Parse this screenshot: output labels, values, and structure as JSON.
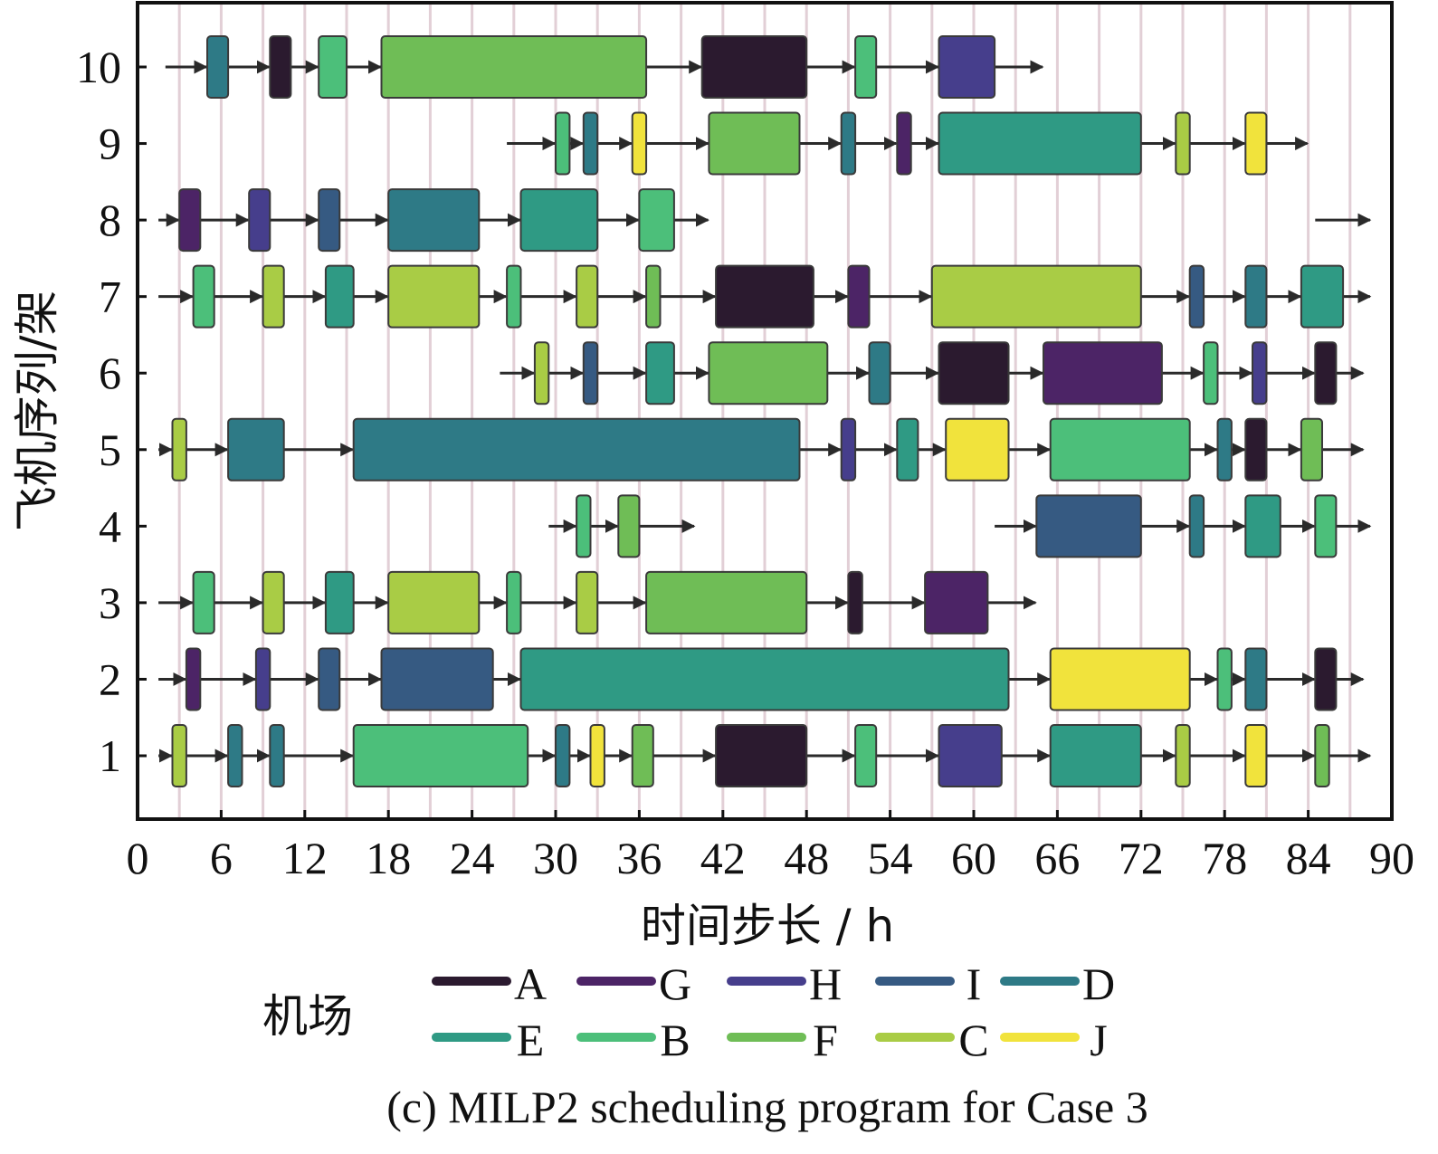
{
  "chart_data": {
    "type": "gantt",
    "caption": "(c) MILP2 scheduling program for Case 3",
    "xlabel": "时间步长 / h",
    "ylabel": "飞机序列/架",
    "xlim": [
      0,
      90
    ],
    "xticks": [
      0,
      6,
      12,
      18,
      24,
      30,
      36,
      42,
      48,
      54,
      60,
      66,
      72,
      78,
      84,
      90
    ],
    "yticks": [
      1,
      2,
      3,
      4,
      5,
      6,
      7,
      8,
      9,
      10
    ],
    "legend_title": "机场",
    "legend": [
      {
        "key": "A",
        "label": "A",
        "color": "#2b1a2f"
      },
      {
        "key": "G",
        "label": "G",
        "color": "#4c2466"
      },
      {
        "key": "H",
        "label": "H",
        "color": "#463e8c"
      },
      {
        "key": "I",
        "label": "I",
        "color": "#365a82"
      },
      {
        "key": "D",
        "label": "D",
        "color": "#2e7a86"
      },
      {
        "key": "E",
        "label": "E",
        "color": "#2f9a84"
      },
      {
        "key": "B",
        "label": "B",
        "color": "#4cbf7a"
      },
      {
        "key": "F",
        "label": "F",
        "color": "#6fbd56"
      },
      {
        "key": "C",
        "label": "C",
        "color": "#a9cc45"
      },
      {
        "key": "J",
        "label": "J",
        "color": "#f1e33c"
      }
    ],
    "rows": [
      {
        "aircraft": 10,
        "line": [
          2,
          65
        ],
        "tasks": [
          {
            "start": 5,
            "end": 6.5,
            "airport": "D"
          },
          {
            "start": 9.5,
            "end": 11,
            "airport": "A"
          },
          {
            "start": 13,
            "end": 15,
            "airport": "B"
          },
          {
            "start": 17.5,
            "end": 36.5,
            "airport": "F"
          },
          {
            "start": 40.5,
            "end": 48,
            "airport": "A"
          },
          {
            "start": 51.5,
            "end": 53,
            "airport": "B"
          },
          {
            "start": 57.5,
            "end": 61.5,
            "airport": "H"
          }
        ]
      },
      {
        "aircraft": 9,
        "line": [
          26.5,
          84
        ],
        "tasks": [
          {
            "start": 30,
            "end": 31,
            "airport": "B"
          },
          {
            "start": 32,
            "end": 33,
            "airport": "D"
          },
          {
            "start": 35.5,
            "end": 36.5,
            "airport": "J"
          },
          {
            "start": 41,
            "end": 47.5,
            "airport": "F"
          },
          {
            "start": 50.5,
            "end": 51.5,
            "airport": "D"
          },
          {
            "start": 54.5,
            "end": 55.5,
            "airport": "G"
          },
          {
            "start": 57.5,
            "end": 72,
            "airport": "E"
          },
          {
            "start": 74.5,
            "end": 75.5,
            "airport": "C"
          },
          {
            "start": 79.5,
            "end": 81,
            "airport": "J"
          }
        ]
      },
      {
        "aircraft": 8,
        "line": [
          1.5,
          41
        ],
        "tasks": [
          {
            "start": 3,
            "end": 4.5,
            "airport": "G"
          },
          {
            "start": 8,
            "end": 9.5,
            "airport": "H"
          },
          {
            "start": 13,
            "end": 14.5,
            "airport": "I"
          },
          {
            "start": 18,
            "end": 24.5,
            "airport": "D"
          },
          {
            "start": 27.5,
            "end": 33,
            "airport": "E"
          },
          {
            "start": 36,
            "end": 38.5,
            "airport": "B"
          }
        ]
      },
      {
        "aircraft": 7,
        "line": [
          1.5,
          88.5
        ],
        "tasks": [
          {
            "start": 4,
            "end": 5.5,
            "airport": "B"
          },
          {
            "start": 9,
            "end": 10.5,
            "airport": "C"
          },
          {
            "start": 13.5,
            "end": 15.5,
            "airport": "E"
          },
          {
            "start": 18,
            "end": 24.5,
            "airport": "C"
          },
          {
            "start": 26.5,
            "end": 27.5,
            "airport": "B"
          },
          {
            "start": 31.5,
            "end": 33,
            "airport": "C"
          },
          {
            "start": 36.5,
            "end": 37.5,
            "airport": "F"
          },
          {
            "start": 41.5,
            "end": 48.5,
            "airport": "A"
          },
          {
            "start": 51,
            "end": 52.5,
            "airport": "G"
          },
          {
            "start": 57,
            "end": 72,
            "airport": "C"
          },
          {
            "start": 75.5,
            "end": 76.5,
            "airport": "I"
          },
          {
            "start": 79.5,
            "end": 81,
            "airport": "D"
          },
          {
            "start": 83.5,
            "end": 86.5,
            "airport": "E"
          }
        ]
      },
      {
        "aircraft": 6,
        "line": [
          26,
          88
        ],
        "tasks": [
          {
            "start": 28.5,
            "end": 29.5,
            "airport": "C"
          },
          {
            "start": 32,
            "end": 33,
            "airport": "I"
          },
          {
            "start": 36.5,
            "end": 38.5,
            "airport": "E"
          },
          {
            "start": 41,
            "end": 49.5,
            "airport": "F"
          },
          {
            "start": 52.5,
            "end": 54,
            "airport": "D"
          },
          {
            "start": 57.5,
            "end": 62.5,
            "airport": "A"
          },
          {
            "start": 65,
            "end": 73.5,
            "airport": "G"
          },
          {
            "start": 76.5,
            "end": 77.5,
            "airport": "B"
          },
          {
            "start": 80,
            "end": 81,
            "airport": "H"
          },
          {
            "start": 84.5,
            "end": 86,
            "airport": "A"
          }
        ]
      },
      {
        "aircraft": 5,
        "line": [
          1.5,
          88
        ],
        "tasks": [
          {
            "start": 2.5,
            "end": 3.5,
            "airport": "C"
          },
          {
            "start": 6.5,
            "end": 10.5,
            "airport": "D"
          },
          {
            "start": 15.5,
            "end": 47.5,
            "airport": "D"
          },
          {
            "start": 50.5,
            "end": 51.5,
            "airport": "H"
          },
          {
            "start": 54.5,
            "end": 56,
            "airport": "E"
          },
          {
            "start": 58,
            "end": 62.5,
            "airport": "J"
          },
          {
            "start": 65.5,
            "end": 75.5,
            "airport": "B"
          },
          {
            "start": 77.5,
            "end": 78.5,
            "airport": "D"
          },
          {
            "start": 79.5,
            "end": 81,
            "airport": "A"
          },
          {
            "start": 83.5,
            "end": 85,
            "airport": "F"
          }
        ]
      },
      {
        "aircraft": 4,
        "line": [
          29.5,
          40
        ],
        "tasks": [
          {
            "start": 31.5,
            "end": 32.5,
            "airport": "B"
          },
          {
            "start": 34.5,
            "end": 36,
            "airport": "F"
          }
        ]
      },
      {
        "aircraft": 4,
        "line": [
          61.5,
          88.5
        ],
        "tasks": [
          {
            "start": 64.5,
            "end": 72,
            "airport": "I"
          },
          {
            "start": 75.5,
            "end": 76.5,
            "airport": "D"
          },
          {
            "start": 79.5,
            "end": 82,
            "airport": "E"
          },
          {
            "start": 84.5,
            "end": 86,
            "airport": "B"
          }
        ]
      },
      {
        "aircraft": 3,
        "line": [
          1.5,
          64.5
        ],
        "tasks": [
          {
            "start": 4,
            "end": 5.5,
            "airport": "B"
          },
          {
            "start": 9,
            "end": 10.5,
            "airport": "C"
          },
          {
            "start": 13.5,
            "end": 15.5,
            "airport": "E"
          },
          {
            "start": 18,
            "end": 24.5,
            "airport": "C"
          },
          {
            "start": 26.5,
            "end": 27.5,
            "airport": "B"
          },
          {
            "start": 31.5,
            "end": 33,
            "airport": "C"
          },
          {
            "start": 36.5,
            "end": 48,
            "airport": "F"
          },
          {
            "start": 51,
            "end": 52,
            "airport": "A"
          },
          {
            "start": 56.5,
            "end": 61,
            "airport": "G"
          }
        ]
      },
      {
        "aircraft": 2,
        "line": [
          1.5,
          88
        ],
        "tasks": [
          {
            "start": 3.5,
            "end": 4.5,
            "airport": "G"
          },
          {
            "start": 8.5,
            "end": 9.5,
            "airport": "H"
          },
          {
            "start": 13,
            "end": 14.5,
            "airport": "I"
          },
          {
            "start": 17.5,
            "end": 25.5,
            "airport": "I"
          },
          {
            "start": 27.5,
            "end": 62.5,
            "airport": "E"
          },
          {
            "start": 65.5,
            "end": 75.5,
            "airport": "J"
          },
          {
            "start": 77.5,
            "end": 78.5,
            "airport": "B"
          },
          {
            "start": 79.5,
            "end": 81,
            "airport": "D"
          },
          {
            "start": 84.5,
            "end": 86,
            "airport": "A"
          }
        ]
      },
      {
        "aircraft": 1,
        "line": [
          1.5,
          88.5
        ],
        "tasks": [
          {
            "start": 2.5,
            "end": 3.5,
            "airport": "C"
          },
          {
            "start": 6.5,
            "end": 7.5,
            "airport": "D"
          },
          {
            "start": 9.5,
            "end": 10.5,
            "airport": "D"
          },
          {
            "start": 15.5,
            "end": 28,
            "airport": "B"
          },
          {
            "start": 30,
            "end": 31,
            "airport": "D"
          },
          {
            "start": 32.5,
            "end": 33.5,
            "airport": "J"
          },
          {
            "start": 35.5,
            "end": 37,
            "airport": "F"
          },
          {
            "start": 41.5,
            "end": 48,
            "airport": "A"
          },
          {
            "start": 51.5,
            "end": 53,
            "airport": "B"
          },
          {
            "start": 57.5,
            "end": 62,
            "airport": "H"
          },
          {
            "start": 65.5,
            "end": 72,
            "airport": "E"
          },
          {
            "start": 74.5,
            "end": 75.5,
            "airport": "C"
          },
          {
            "start": 79.5,
            "end": 81,
            "airport": "J"
          },
          {
            "start": 84.5,
            "end": 85.5,
            "airport": "F"
          }
        ]
      },
      {
        "aircraft": 8,
        "line": [
          84.5,
          88.5
        ],
        "tasks": []
      }
    ]
  }
}
